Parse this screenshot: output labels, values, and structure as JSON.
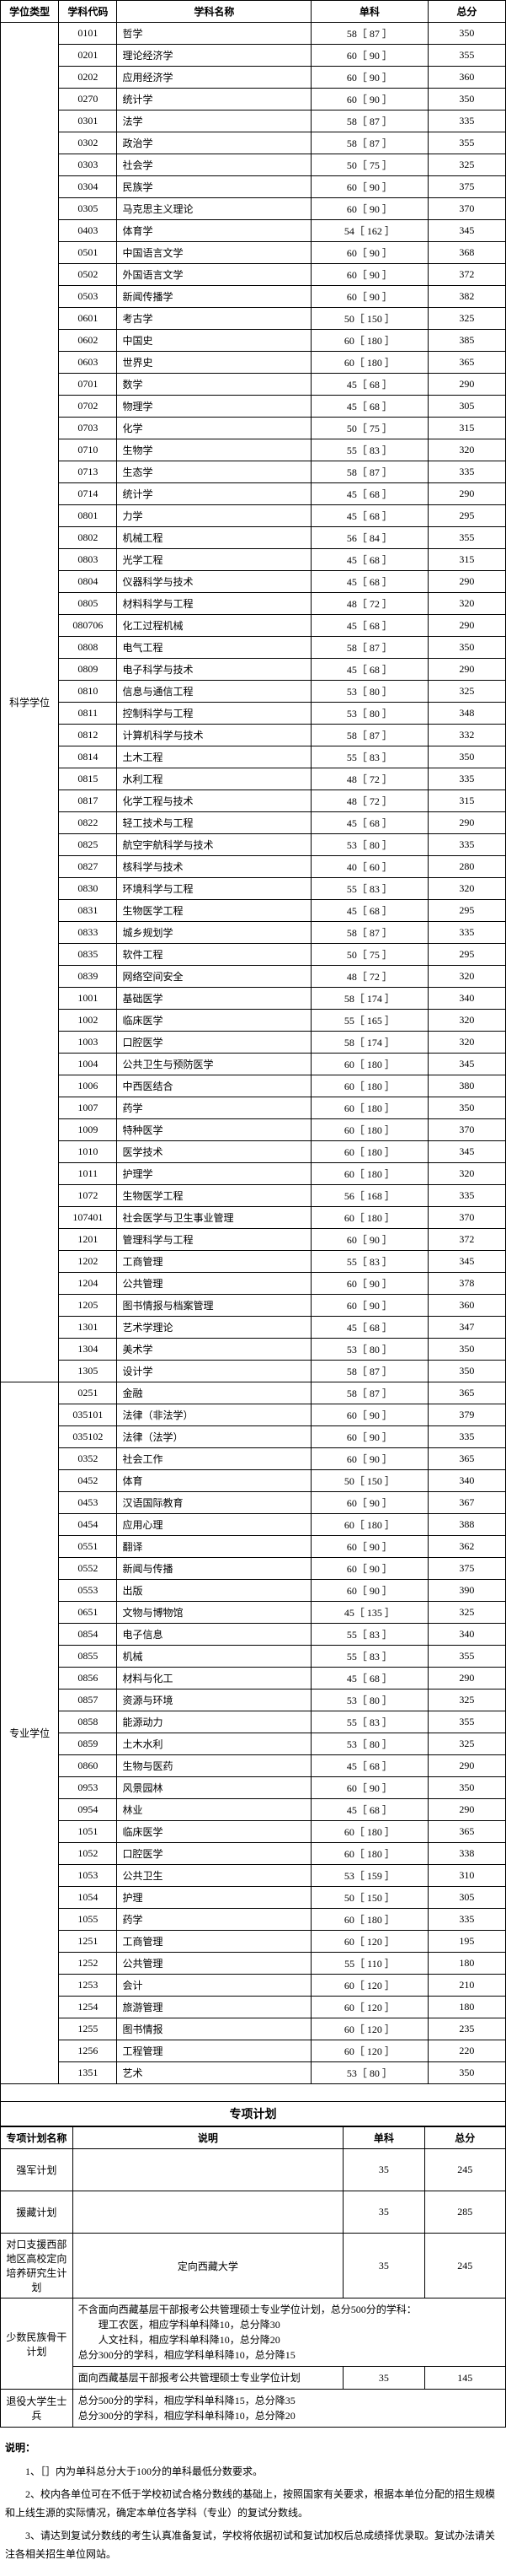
{
  "mainHeaders": {
    "type": "学位类型",
    "code": "学科代码",
    "name": "学科名称",
    "single": "单科",
    "total": "总分"
  },
  "groups": [
    {
      "type": "科学学位",
      "rows": [
        {
          "code": "0101",
          "name": "哲学",
          "single": "58［ 87 ］",
          "total": "350"
        },
        {
          "code": "0201",
          "name": "理论经济学",
          "single": "60［ 90 ］",
          "total": "355"
        },
        {
          "code": "0202",
          "name": "应用经济学",
          "single": "60［ 90 ］",
          "total": "360"
        },
        {
          "code": "0270",
          "name": "统计学",
          "single": "60［ 90 ］",
          "total": "350"
        },
        {
          "code": "0301",
          "name": "法学",
          "single": "58［ 87 ］",
          "total": "335"
        },
        {
          "code": "0302",
          "name": "政治学",
          "single": "58［ 87 ］",
          "total": "355"
        },
        {
          "code": "0303",
          "name": "社会学",
          "single": "50［ 75 ］",
          "total": "325"
        },
        {
          "code": "0304",
          "name": "民族学",
          "single": "60［ 90 ］",
          "total": "375"
        },
        {
          "code": "0305",
          "name": "马克思主义理论",
          "single": "60［ 90 ］",
          "total": "370"
        },
        {
          "code": "0403",
          "name": "体育学",
          "single": "54［ 162 ］",
          "total": "345"
        },
        {
          "code": "0501",
          "name": "中国语言文学",
          "single": "60［ 90 ］",
          "total": "368"
        },
        {
          "code": "0502",
          "name": "外国语言文学",
          "single": "60［ 90 ］",
          "total": "372"
        },
        {
          "code": "0503",
          "name": "新闻传播学",
          "single": "60［ 90 ］",
          "total": "382"
        },
        {
          "code": "0601",
          "name": "考古学",
          "single": "50［ 150 ］",
          "total": "325"
        },
        {
          "code": "0602",
          "name": "中国史",
          "single": "60［ 180 ］",
          "total": "385"
        },
        {
          "code": "0603",
          "name": "世界史",
          "single": "60［ 180 ］",
          "total": "365"
        },
        {
          "code": "0701",
          "name": "数学",
          "single": "45［ 68 ］",
          "total": "290"
        },
        {
          "code": "0702",
          "name": "物理学",
          "single": "45［ 68 ］",
          "total": "305"
        },
        {
          "code": "0703",
          "name": "化学",
          "single": "50［ 75 ］",
          "total": "315"
        },
        {
          "code": "0710",
          "name": "生物学",
          "single": "55［ 83 ］",
          "total": "320"
        },
        {
          "code": "0713",
          "name": "生态学",
          "single": "58［ 87 ］",
          "total": "335"
        },
        {
          "code": "0714",
          "name": "统计学",
          "single": "45［ 68 ］",
          "total": "290"
        },
        {
          "code": "0801",
          "name": "力学",
          "single": "45［ 68 ］",
          "total": "295"
        },
        {
          "code": "0802",
          "name": "机械工程",
          "single": "56［ 84 ］",
          "total": "355"
        },
        {
          "code": "0803",
          "name": "光学工程",
          "single": "45［ 68 ］",
          "total": "315"
        },
        {
          "code": "0804",
          "name": "仪器科学与技术",
          "single": "45［ 68 ］",
          "total": "290"
        },
        {
          "code": "0805",
          "name": "材料科学与工程",
          "single": "48［ 72 ］",
          "total": "320"
        },
        {
          "code": "080706",
          "name": "化工过程机械",
          "single": "45［ 68 ］",
          "total": "290"
        },
        {
          "code": "0808",
          "name": "电气工程",
          "single": "58［ 87 ］",
          "total": "350"
        },
        {
          "code": "0809",
          "name": "电子科学与技术",
          "single": "45［ 68 ］",
          "total": "290"
        },
        {
          "code": "0810",
          "name": "信息与通信工程",
          "single": "53［ 80 ］",
          "total": "325"
        },
        {
          "code": "0811",
          "name": "控制科学与工程",
          "single": "53［ 80 ］",
          "total": "348"
        },
        {
          "code": "0812",
          "name": "计算机科学与技术",
          "single": "58［ 87 ］",
          "total": "332"
        },
        {
          "code": "0814",
          "name": "土木工程",
          "single": "55［ 83 ］",
          "total": "350"
        },
        {
          "code": "0815",
          "name": "水利工程",
          "single": "48［ 72 ］",
          "total": "335"
        },
        {
          "code": "0817",
          "name": "化学工程与技术",
          "single": "48［ 72 ］",
          "total": "315"
        },
        {
          "code": "0822",
          "name": "轻工技术与工程",
          "single": "45［ 68 ］",
          "total": "290"
        },
        {
          "code": "0825",
          "name": "航空宇航科学与技术",
          "single": "53［ 80 ］",
          "total": "335"
        },
        {
          "code": "0827",
          "name": "核科学与技术",
          "single": "40［ 60 ］",
          "total": "280"
        },
        {
          "code": "0830",
          "name": "环境科学与工程",
          "single": "55［ 83 ］",
          "total": "320"
        },
        {
          "code": "0831",
          "name": "生物医学工程",
          "single": "45［ 68 ］",
          "total": "295"
        },
        {
          "code": "0833",
          "name": "城乡规划学",
          "single": "58［ 87 ］",
          "total": "335"
        },
        {
          "code": "0835",
          "name": "软件工程",
          "single": "50［ 75 ］",
          "total": "295"
        },
        {
          "code": "0839",
          "name": "网络空间安全",
          "single": "48［ 72 ］",
          "total": "320"
        },
        {
          "code": "1001",
          "name": "基础医学",
          "single": "58［ 174 ］",
          "total": "340"
        },
        {
          "code": "1002",
          "name": "临床医学",
          "single": "55［ 165 ］",
          "total": "320"
        },
        {
          "code": "1003",
          "name": "口腔医学",
          "single": "58［ 174 ］",
          "total": "320"
        },
        {
          "code": "1004",
          "name": "公共卫生与预防医学",
          "single": "60［ 180 ］",
          "total": "345"
        },
        {
          "code": "1006",
          "name": "中西医结合",
          "single": "60［ 180 ］",
          "total": "380"
        },
        {
          "code": "1007",
          "name": "药学",
          "single": "60［ 180 ］",
          "total": "350"
        },
        {
          "code": "1009",
          "name": "特种医学",
          "single": "60［ 180 ］",
          "total": "370"
        },
        {
          "code": "1010",
          "name": "医学技术",
          "single": "60［ 180 ］",
          "total": "345"
        },
        {
          "code": "1011",
          "name": "护理学",
          "single": "60［ 180 ］",
          "total": "320"
        },
        {
          "code": "1072",
          "name": "生物医学工程",
          "single": "56［ 168 ］",
          "total": "335"
        },
        {
          "code": "107401",
          "name": "社会医学与卫生事业管理",
          "single": "60［ 180 ］",
          "total": "370"
        },
        {
          "code": "1201",
          "name": "管理科学与工程",
          "single": "60［ 90 ］",
          "total": "372"
        },
        {
          "code": "1202",
          "name": "工商管理",
          "single": "55［ 83 ］",
          "total": "345"
        },
        {
          "code": "1204",
          "name": "公共管理",
          "single": "60［ 90 ］",
          "total": "378"
        },
        {
          "code": "1205",
          "name": "图书情报与档案管理",
          "single": "60［ 90 ］",
          "total": "360"
        },
        {
          "code": "1301",
          "name": "艺术学理论",
          "single": "45［ 68 ］",
          "total": "347"
        },
        {
          "code": "1304",
          "name": "美术学",
          "single": "53［ 80 ］",
          "total": "350"
        },
        {
          "code": "1305",
          "name": "设计学",
          "single": "58［ 87 ］",
          "total": "350"
        }
      ]
    },
    {
      "type": "专业学位",
      "rows": [
        {
          "code": "0251",
          "name": "金融",
          "single": "58［ 87 ］",
          "total": "365"
        },
        {
          "code": "035101",
          "name": "法律（非法学）",
          "single": "60［ 90 ］",
          "total": "379"
        },
        {
          "code": "035102",
          "name": "法律（法学）",
          "single": "60［ 90 ］",
          "total": "335"
        },
        {
          "code": "0352",
          "name": "社会工作",
          "single": "60［ 90 ］",
          "total": "365"
        },
        {
          "code": "0452",
          "name": "体育",
          "single": "50［ 150 ］",
          "total": "340"
        },
        {
          "code": "0453",
          "name": "汉语国际教育",
          "single": "60［ 90 ］",
          "total": "367"
        },
        {
          "code": "0454",
          "name": "应用心理",
          "single": "60［ 180 ］",
          "total": "388"
        },
        {
          "code": "0551",
          "name": "翻译",
          "single": "60［ 90 ］",
          "total": "362"
        },
        {
          "code": "0552",
          "name": "新闻与传播",
          "single": "60［ 90 ］",
          "total": "375"
        },
        {
          "code": "0553",
          "name": "出版",
          "single": "60［ 90 ］",
          "total": "390"
        },
        {
          "code": "0651",
          "name": "文物与博物馆",
          "single": "45［ 135 ］",
          "total": "325"
        },
        {
          "code": "0854",
          "name": "电子信息",
          "single": "55［ 83 ］",
          "total": "340"
        },
        {
          "code": "0855",
          "name": "机械",
          "single": "55［ 83 ］",
          "total": "355"
        },
        {
          "code": "0856",
          "name": "材料与化工",
          "single": "45［ 68 ］",
          "total": "290"
        },
        {
          "code": "0857",
          "name": "资源与环境",
          "single": "53［ 80 ］",
          "total": "325"
        },
        {
          "code": "0858",
          "name": "能源动力",
          "single": "55［ 83 ］",
          "total": "355"
        },
        {
          "code": "0859",
          "name": "土木水利",
          "single": "53［ 80 ］",
          "total": "325"
        },
        {
          "code": "0860",
          "name": "生物与医药",
          "single": "45［ 68 ］",
          "total": "290"
        },
        {
          "code": "0953",
          "name": "风景园林",
          "single": "60［ 90 ］",
          "total": "350"
        },
        {
          "code": "0954",
          "name": "林业",
          "single": "45［ 68 ］",
          "total": "290"
        },
        {
          "code": "1051",
          "name": "临床医学",
          "single": "60［ 180 ］",
          "total": "365"
        },
        {
          "code": "1052",
          "name": "口腔医学",
          "single": "60［ 180 ］",
          "total": "338"
        },
        {
          "code": "1053",
          "name": "公共卫生",
          "single": "53［ 159 ］",
          "total": "310"
        },
        {
          "code": "1054",
          "name": "护理",
          "single": "50［ 150 ］",
          "total": "305"
        },
        {
          "code": "1055",
          "name": "药学",
          "single": "60［ 180 ］",
          "total": "335"
        },
        {
          "code": "1251",
          "name": "工商管理",
          "single": "60［ 120 ］",
          "total": "195"
        },
        {
          "code": "1252",
          "name": "公共管理",
          "single": "55［ 110 ］",
          "total": "180"
        },
        {
          "code": "1253",
          "name": "会计",
          "single": "60［ 120 ］",
          "total": "210"
        },
        {
          "code": "1254",
          "name": "旅游管理",
          "single": "60［ 120 ］",
          "total": "180"
        },
        {
          "code": "1255",
          "name": "图书情报",
          "single": "60［ 120 ］",
          "total": "235"
        },
        {
          "code": "1256",
          "name": "工程管理",
          "single": "60［ 120 ］",
          "total": "220"
        },
        {
          "code": "1351",
          "name": "艺术",
          "single": "53［ 80 ］",
          "total": "350"
        }
      ]
    }
  ],
  "specialHeader": "专项计划",
  "specialHeaders": {
    "name": "专项计划名称",
    "desc": "说明",
    "single": "单科",
    "total": "总分"
  },
  "specialPlans": [
    {
      "name": "强军计划",
      "desc": "",
      "single": "35",
      "total": "245"
    },
    {
      "name": "援藏计划",
      "desc": "",
      "single": "35",
      "total": "285"
    },
    {
      "name": "对口支援西部地区高校定向培养研究生计划",
      "desc": "定向西藏大学",
      "single": "35",
      "total": "245"
    },
    {
      "name": "少数民族骨干计划",
      "desc": "不含面向西藏基层干部报考公共管理硕士专业学位计划，总分500分的学科：<br>　　理工农医，相应学科单科降10，总分降30<br>　　人文社科，相应学科单科降10，总分降20<br>总分300分的学科，相应学科单科降10，总分降15",
      "single": "",
      "total": ""
    },
    {
      "name": "",
      "desc": "面向西藏基层干部报考公共管理硕士专业学位计划",
      "single": "35",
      "total": "145"
    },
    {
      "name": "退役大学生士兵",
      "desc": "总分500分的学科，相应学科单科降15，总分降35<br>总分300分的学科，相应学科单科降10，总分降20",
      "single": "",
      "total": ""
    }
  ],
  "notes": {
    "label": "说明：",
    "p1": "1、［］内为单科总分大于100分的单科最低分数要求。",
    "p2": "2、校内各单位可在不低于学校初试合格分数线的基础上，按照国家有关要求，根据本单位分配的招生规模和上线生源的实际情况，确定本单位各学科（专业）的复试分数线。",
    "p3": "3、请达到复试分数线的考生认真准备复试，学校将依据初试和复试加权后总成绩择优录取。复试办法请关注各相关招生单位网站。"
  }
}
